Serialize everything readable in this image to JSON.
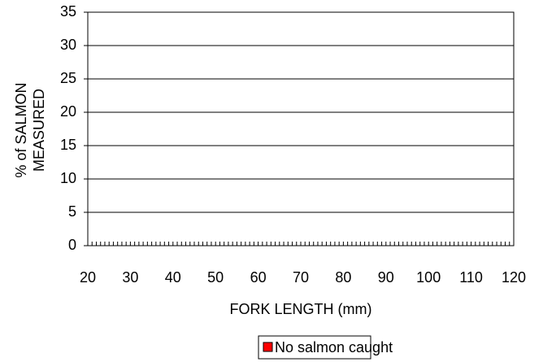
{
  "chart_data": {
    "type": "bar",
    "y_label": [
      "% of SALMON",
      "MEASURED"
    ],
    "x_label": "FORK LENGTH (mm)",
    "x": [],
    "series": [
      {
        "name": "No salmon caught",
        "color": "#ff0000",
        "values": []
      }
    ],
    "xlim": [
      20,
      120
    ],
    "xticks": [
      20,
      30,
      40,
      50,
      60,
      70,
      80,
      90,
      100,
      110,
      120
    ],
    "ylim": [
      0,
      35
    ],
    "yticks": [
      0,
      5,
      10,
      15,
      20,
      25,
      30,
      35
    ],
    "grid": true,
    "legend": "bottom"
  }
}
